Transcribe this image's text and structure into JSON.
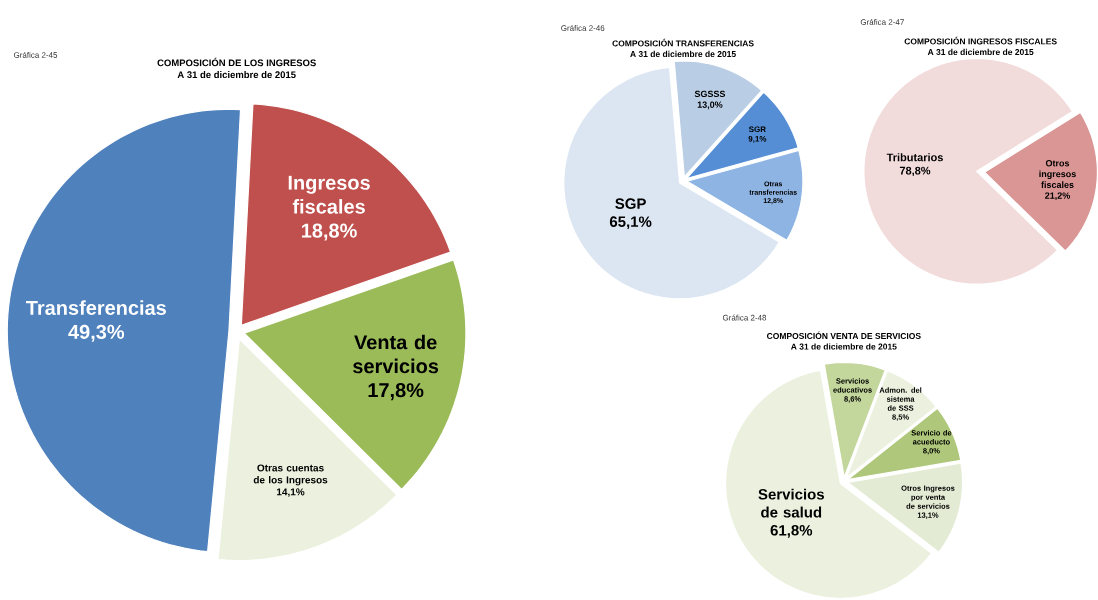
{
  "chart_data": [
    {
      "type": "pie",
      "title": "COMPOSICIÓN DE LOS INGRESOS",
      "subtitle": "A 31 de diciembre de 2015",
      "annotations": [
        "Gráfica 2-45"
      ],
      "categories": [
        "Ingresos fiscales",
        "Venta de servicios",
        "Otras cuentas de los Ingresos",
        "Transferencias"
      ],
      "values": [
        18.8,
        17.8,
        14.1,
        49.3
      ],
      "value_labels": [
        "18,8%",
        "17,8%",
        "14,1%",
        "49,3%"
      ],
      "colors": [
        "#c0504d",
        "#9bbb59",
        "#ebf1de",
        "#4f81bd"
      ]
    },
    {
      "type": "pie",
      "title": "COMPOSICIÓN TRANSFERENCIAS",
      "subtitle": "A 31 de diciembre de 2015",
      "annotations": [
        "Gráfica 2-46"
      ],
      "categories": [
        "SGSSS",
        "SGR",
        "Otras transferencias",
        "SGP"
      ],
      "values": [
        13.0,
        9.1,
        12.8,
        65.1
      ],
      "value_labels": [
        "13,0%",
        "9,1%",
        "12,8%",
        "65,1%"
      ],
      "colors": [
        "#b9cde5",
        "#558ed5",
        "#8eb4e3",
        "#dce6f2"
      ]
    },
    {
      "type": "pie",
      "title": "COMPOSICIÓN INGRESOS FISCALES",
      "subtitle": "A 31 de diciembre de 2015",
      "annotations": [
        "Gráfica 2-47"
      ],
      "categories": [
        "Otros ingresos fiscales",
        "Tributarios"
      ],
      "values": [
        21.2,
        78.8
      ],
      "value_labels": [
        "21,2%",
        "78,8%"
      ],
      "colors": [
        "#d99694",
        "#f2dcdb"
      ]
    },
    {
      "type": "pie",
      "title": "COMPOSICIÓN VENTA DE SERVICIOS",
      "subtitle": "A 31 de diciembre de 2015",
      "annotations": [
        "Gráfica 2-48"
      ],
      "categories": [
        "Servicios educativos",
        "Admon. del sistema de SSS",
        "Servicio de acueducto",
        "Otros Ingresos por venta de servicios",
        "Servicios de salud"
      ],
      "values": [
        8.6,
        8.5,
        8.0,
        13.1,
        61.8
      ],
      "value_labels": [
        "8,6%",
        "8,5%",
        "8,0%",
        "13,1%",
        "61,8%"
      ],
      "colors": [
        "#c3d69b",
        "#ebf1de",
        "#aec77a",
        "#e4ebd5",
        "#ebf1de"
      ]
    }
  ]
}
